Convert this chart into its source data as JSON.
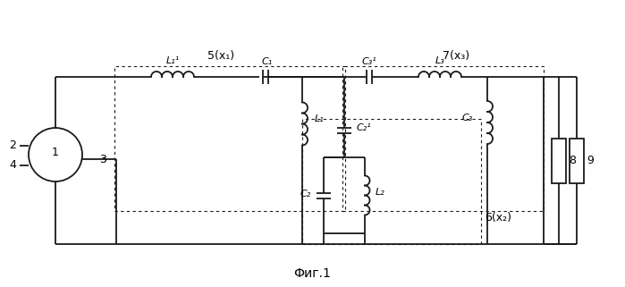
{
  "fig_width": 6.99,
  "fig_height": 3.21,
  "dpi": 100,
  "bg_color": "#ffffff",
  "line_color": "#1a1a1a",
  "line_width": 1.3,
  "title": "Фиг.1",
  "box5_label": "5(x₁)",
  "box6_label": "6(x₂)",
  "box7_label": "7(x₃)",
  "label_1": "1",
  "label_2": "2",
  "label_3": "3",
  "label_4": "4",
  "label_8": "8",
  "label_9": "9",
  "label_L11": "L₁¹",
  "label_L1": "L₁",
  "label_C1": "C₁",
  "label_C21": "C₂¹",
  "label_C2": "C₂",
  "label_L2": "L₂",
  "label_C31": "C₃¹",
  "label_C3": "C₃",
  "label_L3": "L₃"
}
